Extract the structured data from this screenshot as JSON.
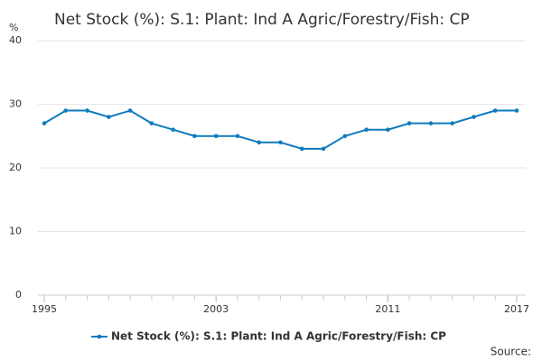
{
  "chart_data": {
    "type": "line",
    "title": "Net Stock (%): S.1: Plant: Ind A Agric/Forestry/Fish: CP",
    "y_label": "%",
    "x": [
      1995,
      1996,
      1997,
      1998,
      1999,
      2000,
      2001,
      2002,
      2003,
      2004,
      2005,
      2006,
      2007,
      2008,
      2009,
      2010,
      2011,
      2012,
      2013,
      2014,
      2015,
      2016,
      2017
    ],
    "series": [
      {
        "name": "Net Stock (%): S.1: Plant: Ind A Agric/Forestry/Fish: CP",
        "color": "#0e7bbd",
        "values": [
          27,
          29,
          29,
          28,
          29,
          27,
          26,
          25,
          25,
          25,
          24,
          24,
          23,
          23,
          25,
          26,
          26,
          27,
          27,
          27,
          28,
          29,
          29
        ]
      }
    ],
    "xlim": [
      1995,
      2017
    ],
    "xticks": [
      1995,
      2003,
      2011,
      2017
    ],
    "ylim": [
      0,
      40
    ],
    "yticks": [
      0,
      10,
      20,
      30,
      40
    ],
    "grid": true,
    "source": "Source:"
  }
}
